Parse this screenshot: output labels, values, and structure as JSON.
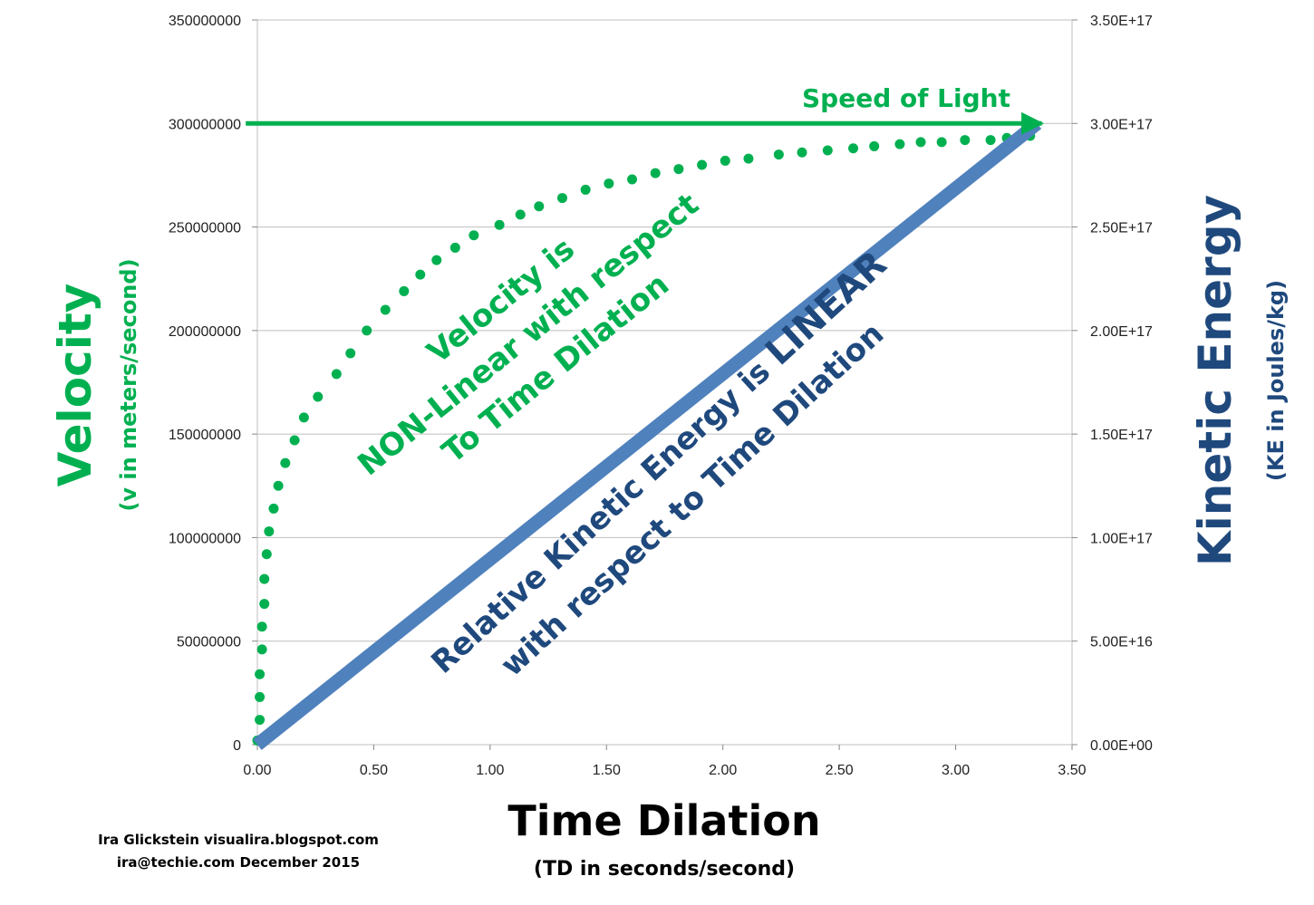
{
  "chart_data": {
    "type": "line",
    "title": "",
    "xlabel": "Time Dilation",
    "xlabel_sub": "(TD in seconds/second)",
    "ylabel": "Velocity",
    "ylabel_sub": "(v in meters/second)",
    "y2label": "Kinetic Energy",
    "y2label_sub": "(KE in Joules/kg)",
    "xlim": [
      0,
      3.5
    ],
    "ylim": [
      0,
      350000000
    ],
    "y2lim": [
      0,
      3.5e+17
    ],
    "grid": true,
    "x_ticks": [
      "0.00",
      "0.50",
      "1.00",
      "1.50",
      "2.00",
      "2.50",
      "3.00",
      "3.50"
    ],
    "y_ticks": [
      "0",
      "50000000",
      "100000000",
      "150000000",
      "200000000",
      "250000000",
      "300000000",
      "350000000"
    ],
    "y2_ticks": [
      "0.00E+00",
      "5.00E+16",
      "1.00E+17",
      "1.50E+17",
      "2.00E+17",
      "2.50E+17",
      "3.00E+17",
      "3.50E+17"
    ],
    "series": [
      {
        "name": "Velocity",
        "axis": "left",
        "style": "dotted",
        "color": "#00b050",
        "x": [
          0.0,
          0.01,
          0.01,
          0.01,
          0.02,
          0.02,
          0.03,
          0.03,
          0.04,
          0.05,
          0.07,
          0.09,
          0.12,
          0.16,
          0.2,
          0.26,
          0.34,
          0.4,
          0.47,
          0.55,
          0.63,
          0.7,
          0.77,
          0.85,
          0.93,
          1.04,
          1.13,
          1.21,
          1.31,
          1.41,
          1.51,
          1.61,
          1.71,
          1.81,
          1.91,
          2.01,
          2.11,
          2.24,
          2.34,
          2.45,
          2.56,
          2.65,
          2.76,
          2.85,
          2.94,
          3.04,
          3.15,
          3.22,
          3.32
        ],
        "values": [
          2000000,
          12000000,
          23000000,
          34000000,
          46000000,
          57000000,
          68000000,
          80000000,
          92000000,
          103000000,
          114000000,
          125000000,
          136000000,
          147000000,
          158000000,
          168000000,
          179000000,
          189000000,
          200000000,
          210000000,
          219000000,
          227000000,
          234000000,
          240000000,
          246000000,
          251000000,
          256000000,
          260000000,
          264000000,
          268000000,
          271000000,
          273000000,
          276000000,
          278000000,
          280000000,
          282000000,
          283000000,
          285000000,
          286000000,
          287000000,
          288000000,
          289000000,
          290000000,
          291000000,
          291000000,
          292000000,
          292000000,
          293000000,
          294000000
        ]
      },
      {
        "name": "Relative Kinetic Energy",
        "axis": "right",
        "style": "solid",
        "color": "#4f81bd",
        "x": [
          0,
          3.35
        ],
        "values": [
          0,
          3e+17
        ]
      },
      {
        "name": "Speed of Light",
        "axis": "left",
        "style": "arrow",
        "color": "#00b050",
        "x": [
          -0.05,
          3.37
        ],
        "values": [
          300000000,
          300000000
        ]
      }
    ],
    "annotations": {
      "speed_of_light": "Speed of Light",
      "velocity_line1": "Velocity is",
      "velocity_line2": "NON-Linear with respect",
      "velocity_line3": "To Time Dilation",
      "ke_line1_a": "Relative Kinetic Energy is ",
      "ke_line1_b": "LINEAR",
      "ke_line2": "with respect to Time Dilation"
    },
    "credit_line1": "Ira Glickstein visualira.blogspot.com",
    "credit_line2": "ira@techie.com December 2015"
  },
  "colors": {
    "green": "#00b050",
    "blue_line": "#4f81bd",
    "navy_text": "#1f497d",
    "grid": "#bfbfbf"
  }
}
